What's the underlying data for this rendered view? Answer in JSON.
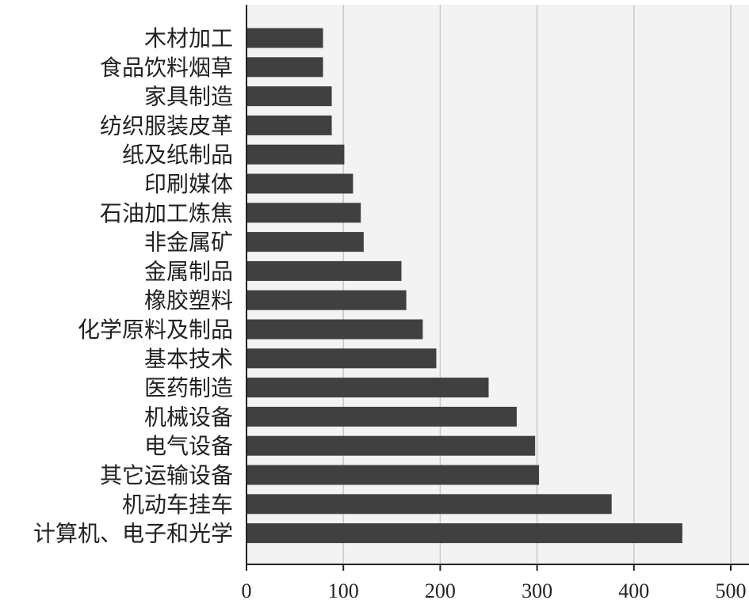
{
  "chart_data": {
    "type": "bar",
    "orientation": "horizontal",
    "title": "",
    "xlabel": "",
    "ylabel": "",
    "categories": [
      "木材加工",
      "食品饮料烟草",
      "家具制造",
      "纺织服装皮革",
      "纸及纸制品",
      "印刷媒体",
      "石油加工炼焦",
      "非金属矿",
      "金属制品",
      "橡胶塑料",
      "化学原料及制品",
      "基本技术",
      "医药制造",
      "机械设备",
      "电气设备",
      "其它运输设备",
      "机动车挂车",
      "计算机、电子和光学"
    ],
    "values": [
      79,
      79,
      88,
      88,
      101,
      110,
      118,
      121,
      160,
      165,
      182,
      196,
      250,
      279,
      298,
      302,
      377,
      450
    ],
    "xlim": [
      0,
      520
    ],
    "xticks": [
      "0",
      "100",
      "200",
      "300",
      "400",
      "500"
    ],
    "grid": "vertical",
    "bar_color": "#404040",
    "grid_color": "#c8c8c8",
    "background": "#f3f3f3"
  }
}
